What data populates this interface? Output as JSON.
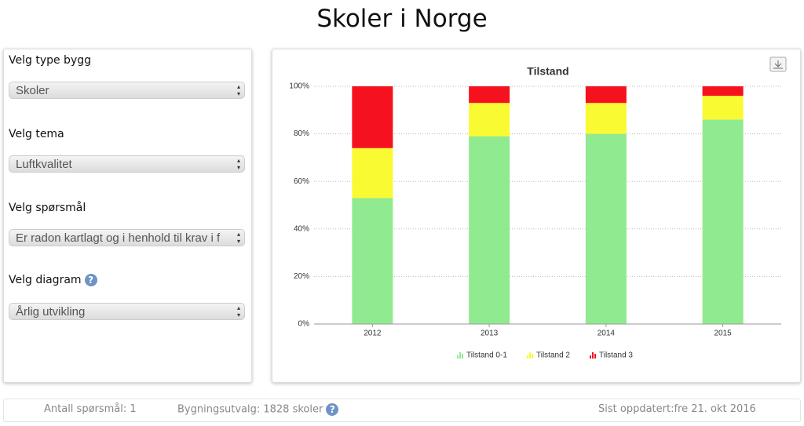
{
  "header": {
    "title": "Skoler i Norge"
  },
  "sidebar": {
    "fields": [
      {
        "label": "Velg type bygg",
        "value": "Skoler"
      },
      {
        "label": "Velg tema",
        "value": "Luftkvalitet"
      },
      {
        "label": "Velg spørsmål",
        "value": "Er radon kartlagt og i henhold til krav i f"
      },
      {
        "label": "Velg diagram",
        "value": "Årlig utvikling"
      }
    ]
  },
  "footer": {
    "items": [
      "Antall spørsmål: 1",
      "Bygningsutvalg: 1828 skoler",
      "Sist oppdatert:fre 21. okt 2016"
    ]
  },
  "chart_data": {
    "type": "stacked_bar",
    "title": "Tilstand",
    "categories": [
      "2012",
      "2013",
      "2014",
      "2015"
    ],
    "series": [
      {
        "name": "Tilstand 0-1",
        "color": "#90ea90",
        "values": [
          53,
          79,
          80,
          86
        ]
      },
      {
        "name": "Tilstand 2",
        "color": "#fafa32",
        "values": [
          21,
          14,
          13,
          10
        ]
      },
      {
        "name": "Tilstand 3",
        "color": "#f5121e",
        "values": [
          26,
          7,
          7,
          4
        ]
      }
    ],
    "ylim": [
      0,
      100
    ],
    "yticks": [
      {
        "value": 0,
        "label": "0%"
      },
      {
        "value": 20,
        "label": "20%"
      },
      {
        "value": 40,
        "label": "40%"
      },
      {
        "value": 60,
        "label": "60%"
      },
      {
        "value": 80,
        "label": "80%"
      },
      {
        "value": 100,
        "label": "100%"
      }
    ],
    "grid": true
  }
}
